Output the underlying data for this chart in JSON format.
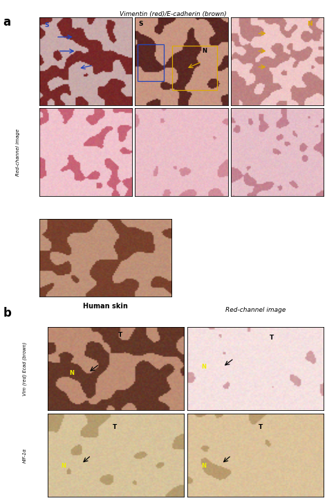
{
  "title_top": "Vimentin (red)/E-cadherin (brown)",
  "label_a": "a",
  "label_b": "b",
  "label_redchannel": "Red-channel image",
  "label_human_skin": "Human skin",
  "label_vim": "Vim (red) Ecad (brown)",
  "label_hif": "HIF-1α",
  "bg_color": "#ffffff",
  "fig_w": 4.73,
  "fig_h": 7.26,
  "dpi": 100,
  "panel_colors": {
    "a_r1c1_bg": [
      200,
      170,
      170
    ],
    "a_r1c1_fg": [
      120,
      40,
      40
    ],
    "a_r1c2_bg": [
      90,
      40,
      35
    ],
    "a_r1c2_fg": [
      200,
      150,
      130
    ],
    "a_r1c3_bg": [
      190,
      130,
      130
    ],
    "a_r1c3_fg": [
      240,
      200,
      200
    ],
    "a_r2c1_bg": [
      240,
      195,
      205
    ],
    "a_r2c1_fg": [
      200,
      100,
      120
    ],
    "a_r2c2_bg": [
      235,
      190,
      200
    ],
    "a_r2c2_fg": [
      210,
      140,
      155
    ],
    "a_r2c3_bg": [
      230,
      190,
      200
    ],
    "a_r2c3_fg": [
      195,
      130,
      145
    ],
    "skin_bg": [
      190,
      145,
      120
    ],
    "skin_fg": [
      120,
      65,
      45
    ],
    "b_r1c1_bg": [
      190,
      140,
      115
    ],
    "b_r1c1_fg": [
      100,
      55,
      40
    ],
    "b_r1c2_bg": [
      245,
      225,
      225
    ],
    "b_r1c2_fg": [
      210,
      160,
      165
    ],
    "b_r2c1_bg": [
      215,
      195,
      155
    ],
    "b_r2c1_fg": [
      180,
      155,
      110
    ],
    "b_r2c2_bg": [
      220,
      195,
      155
    ],
    "b_r2c2_fg": [
      185,
      155,
      110
    ]
  }
}
